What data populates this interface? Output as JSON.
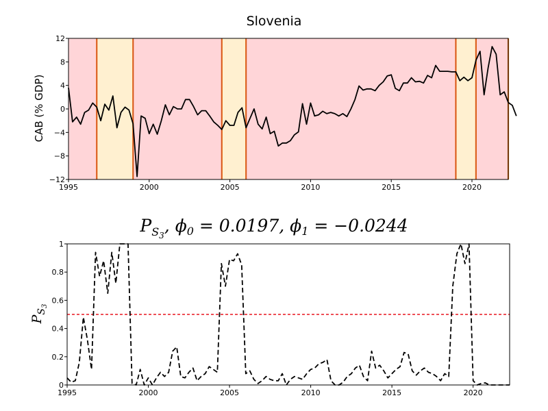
{
  "colors": {
    "regime_high": "#ffd5d8",
    "regime_low": "#fff0d0",
    "boundary": "#e8761a",
    "boundary_inner": "#c0302a",
    "series": "#000000",
    "threshold": "#e8141e"
  },
  "chart_data": [
    {
      "type": "line",
      "title": "Slovenia",
      "xlabel": "",
      "ylabel": "CAB (% GDP)",
      "xlim": [
        1995,
        2022.25
      ],
      "ylim": [
        -12,
        12
      ],
      "xticks": [
        1995,
        2000,
        2005,
        2010,
        2015,
        2020
      ],
      "yticks": [
        -12,
        -8,
        -4,
        0,
        4,
        8,
        12
      ],
      "grid": false,
      "shaded_regions": [
        {
          "start": 1995,
          "end": 1996.75,
          "regime": "high"
        },
        {
          "start": 1996.75,
          "end": 1999.0,
          "regime": "low"
        },
        {
          "start": 1999.0,
          "end": 2004.5,
          "regime": "high"
        },
        {
          "start": 2004.5,
          "end": 2006.0,
          "regime": "low"
        },
        {
          "start": 2006.0,
          "end": 2019.0,
          "regime": "high"
        },
        {
          "start": 2019.0,
          "end": 2020.25,
          "regime": "low"
        },
        {
          "start": 2020.25,
          "end": 2022.25,
          "regime": "high"
        }
      ],
      "boundaries": [
        1996.75,
        1999.0,
        2004.5,
        2006.0,
        2019.0,
        2020.25,
        2022.25
      ],
      "series": [
        {
          "x_start": 1995.0,
          "x_step": 0.25,
          "values": [
            3.6,
            -2.2,
            -1.4,
            -2.6,
            -0.6,
            -0.2,
            1.0,
            0.3,
            -2.0,
            0.8,
            -0.2,
            2.2,
            -3.2,
            -0.6,
            0.3,
            -0.2,
            -2.5,
            -11.5,
            -1.2,
            -1.6,
            -4.2,
            -2.6,
            -4.3,
            -2.0,
            0.7,
            -1.0,
            0.4,
            0.0,
            0.0,
            1.6,
            1.6,
            0.4,
            -1.0,
            -0.3,
            -0.3,
            -1.2,
            -2.2,
            -2.8,
            -3.5,
            -2.0,
            -2.8,
            -2.8,
            -0.6,
            0.2,
            -3.2,
            -1.6,
            0.0,
            -2.6,
            -3.4,
            -1.4,
            -4.2,
            -3.8,
            -6.3,
            -5.8,
            -5.8,
            -5.4,
            -4.4,
            -3.9,
            0.9,
            -2.6,
            1.0,
            -1.2,
            -1.0,
            -0.4,
            -0.8,
            -0.6,
            -0.8,
            -1.2,
            -0.8,
            -1.3,
            0.0,
            1.6,
            3.9,
            3.2,
            3.4,
            3.4,
            3.1,
            4.0,
            4.6,
            5.6,
            5.8,
            3.5,
            3.1,
            4.4,
            4.4,
            5.3,
            4.6,
            4.7,
            4.4,
            5.7,
            5.3,
            7.4,
            6.4,
            6.4,
            6.4,
            6.3,
            6.3,
            4.8,
            5.4,
            4.8,
            5.3,
            8.3,
            9.8,
            2.4,
            7.0,
            10.6,
            9.3,
            2.4,
            2.9,
            1.1,
            0.6,
            -1.2
          ]
        }
      ]
    },
    {
      "type": "line",
      "title": "P_{S_3}, φ_0 = 0.0197, φ_1 = −0.0244",
      "title_parts": {
        "main": "P",
        "sub": "S",
        "subsub": "3",
        "rest": ", ϕ",
        "phi0_sub": "0",
        "phi0_eq": " = 0.0197, ϕ",
        "phi1_sub": "1",
        "phi1_eq": " = −0.0244"
      },
      "xlabel": "",
      "ylabel": "P_{S_3}",
      "ylabel_parts": {
        "main": "P",
        "sub": "S",
        "subsub": "3"
      },
      "xlim": [
        1995,
        2022.25
      ],
      "ylim": [
        0,
        1
      ],
      "xticks": [
        1995,
        2000,
        2005,
        2010,
        2015,
        2020
      ],
      "yticks": [
        0,
        0.2,
        0.4,
        0.6,
        0.8,
        1
      ],
      "ytick_labels": [
        "0",
        "0.2",
        "0.4",
        "0.6",
        "0.8",
        "1"
      ],
      "grid": false,
      "threshold": 0.5,
      "series": [
        {
          "style": "dashed",
          "x_start": 1995.0,
          "x_step": 0.25,
          "values": [
            0.05,
            0.02,
            0.03,
            0.16,
            0.48,
            0.32,
            0.11,
            0.94,
            0.77,
            0.88,
            0.65,
            0.94,
            0.72,
            1.0,
            1.0,
            1.0,
            0.01,
            0.0,
            0.11,
            0.0,
            0.05,
            0.0,
            0.05,
            0.09,
            0.06,
            0.09,
            0.24,
            0.27,
            0.06,
            0.05,
            0.09,
            0.12,
            0.03,
            0.06,
            0.08,
            0.13,
            0.11,
            0.09,
            0.86,
            0.7,
            0.89,
            0.88,
            0.93,
            0.85,
            0.08,
            0.1,
            0.04,
            0.01,
            0.03,
            0.06,
            0.04,
            0.03,
            0.03,
            0.08,
            0.0,
            0.04,
            0.06,
            0.05,
            0.04,
            0.08,
            0.11,
            0.12,
            0.15,
            0.16,
            0.18,
            0.03,
            0.0,
            0.0,
            0.02,
            0.06,
            0.08,
            0.12,
            0.14,
            0.06,
            0.03,
            0.24,
            0.12,
            0.14,
            0.1,
            0.05,
            0.08,
            0.11,
            0.13,
            0.23,
            0.22,
            0.1,
            0.07,
            0.1,
            0.12,
            0.09,
            0.08,
            0.06,
            0.03,
            0.08,
            0.06,
            0.7,
            0.93,
            1.0,
            0.86,
            1.0,
            0.03,
            0.0,
            0.01,
            0.015,
            0.0,
            0.0,
            0.0,
            0.0,
            0.0,
            0.0
          ]
        }
      ]
    }
  ]
}
